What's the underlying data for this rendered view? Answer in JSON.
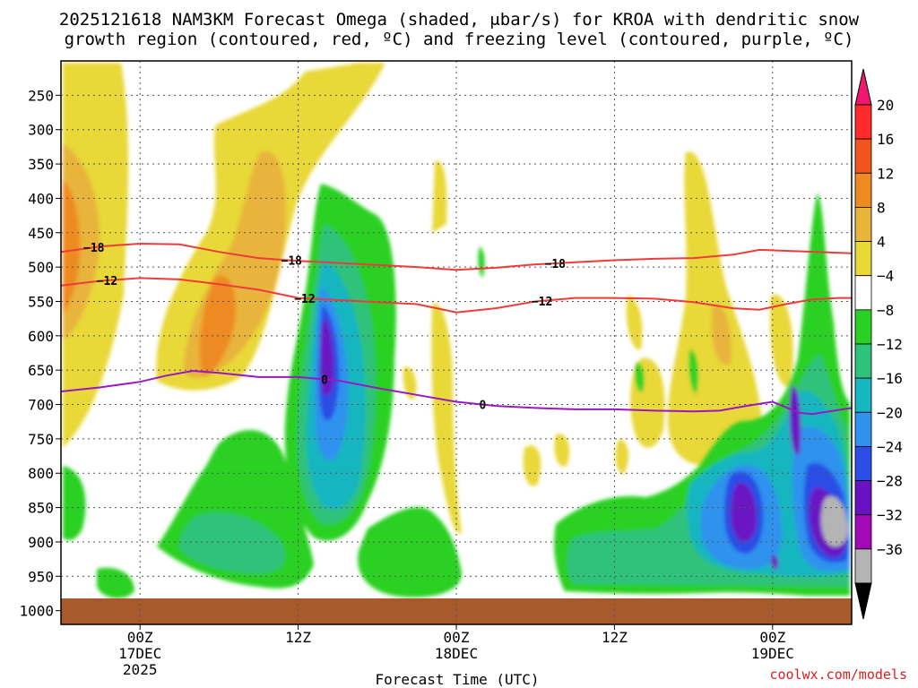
{
  "chart_data": {
    "type": "heatmap",
    "title_line1": "2025121618 NAM3KM Forecast Omega (shaded, μbar/s) for KROA with dendritic snow",
    "title_line2": "growth region (contoured, red, ºC) and freezing level (contoured, purple, ºC)",
    "xlabel": "Forecast Time (UTC)",
    "credit": "coolwx.com/models",
    "y_ticks": [
      250,
      300,
      350,
      400,
      450,
      500,
      550,
      600,
      650,
      700,
      750,
      800,
      850,
      900,
      950,
      1000
    ],
    "y_range_hpa": [
      200,
      1020
    ],
    "x_range_hours": [
      -6,
      54
    ],
    "x_ticks": [
      {
        "hour": 0,
        "label1": "00Z",
        "label2": "17DEC",
        "label3": "2025"
      },
      {
        "hour": 12,
        "label1": "12Z",
        "label2": "",
        "label3": ""
      },
      {
        "hour": 24,
        "label1": "00Z",
        "label2": "18DEC",
        "label3": ""
      },
      {
        "hour": 36,
        "label1": "12Z",
        "label2": "",
        "label3": ""
      },
      {
        "hour": 48,
        "label1": "00Z",
        "label2": "19DEC",
        "label3": ""
      }
    ],
    "colorbar_levels": [
      "20",
      "16",
      "12",
      "8",
      "4",
      "−4",
      "−8",
      "−12",
      "−16",
      "−20",
      "−24",
      "−28",
      "−32",
      "−36"
    ],
    "colorbar_colors": [
      "#ff2b2b",
      "#f2541f",
      "#ee8a22",
      "#e8b43a",
      "#e8d838",
      "#ffffff",
      "#2ad024",
      "#2ec27a",
      "#18b6c0",
      "#2e92ee",
      "#2a4ee6",
      "#6a12c2",
      "#a10ab6",
      "#b4b4b4"
    ],
    "colorbar_top_color": "#f0176e",
    "colorbar_bottom_color": "#000000",
    "contours": {
      "minus18": {
        "label": "−18",
        "color": "#ee3b3b",
        "points": [
          [
            -6,
            478
          ],
          [
            -3,
            470
          ],
          [
            0,
            466
          ],
          [
            3,
            467
          ],
          [
            6,
            478
          ],
          [
            9,
            487
          ],
          [
            12,
            491
          ],
          [
            15,
            494
          ],
          [
            18,
            497
          ],
          [
            21,
            500
          ],
          [
            24,
            504
          ],
          [
            27,
            501
          ],
          [
            30,
            496
          ],
          [
            33,
            493
          ],
          [
            36,
            490
          ],
          [
            39,
            488
          ],
          [
            42,
            487
          ],
          [
            45,
            482
          ],
          [
            47,
            475
          ],
          [
            50,
            477
          ],
          [
            54,
            480
          ]
        ]
      },
      "minus12": {
        "label": "−12",
        "color": "#ee3b3b",
        "points": [
          [
            -6,
            527
          ],
          [
            -3,
            520
          ],
          [
            0,
            516
          ],
          [
            3,
            518
          ],
          [
            6,
            525
          ],
          [
            9,
            533
          ],
          [
            12,
            545
          ],
          [
            15,
            548
          ],
          [
            18,
            551
          ],
          [
            21,
            554
          ],
          [
            24,
            566
          ],
          [
            27,
            560
          ],
          [
            30,
            550
          ],
          [
            33,
            545
          ],
          [
            36,
            545
          ],
          [
            39,
            546
          ],
          [
            42,
            551
          ],
          [
            45,
            560
          ],
          [
            47,
            562
          ],
          [
            49,
            554
          ],
          [
            51,
            547
          ],
          [
            53,
            545
          ],
          [
            54,
            545
          ]
        ]
      },
      "zero": {
        "label": "0",
        "color": "#9a18c4",
        "points": [
          [
            -6,
            681
          ],
          [
            -3,
            675
          ],
          [
            0,
            667
          ],
          [
            2,
            658
          ],
          [
            4,
            651
          ],
          [
            6,
            654
          ],
          [
            9,
            660
          ],
          [
            12,
            660
          ],
          [
            15,
            665
          ],
          [
            18,
            676
          ],
          [
            21,
            686
          ],
          [
            24,
            696
          ],
          [
            27,
            702
          ],
          [
            30,
            705
          ],
          [
            33,
            707
          ],
          [
            36,
            707
          ],
          [
            39,
            709
          ],
          [
            42,
            710
          ],
          [
            44,
            709
          ],
          [
            46,
            702
          ],
          [
            48,
            696
          ],
          [
            50,
            712
          ],
          [
            51,
            714
          ],
          [
            54,
            705
          ]
        ]
      }
    },
    "contour_label_positions": {
      "minus18": [
        [
          -3.5,
          0
        ],
        [
          11.5,
          1
        ],
        [
          31.5,
          2
        ]
      ],
      "minus12": [
        [
          -2.5,
          0
        ],
        [
          12.5,
          1
        ],
        [
          30.5,
          2
        ]
      ],
      "zero": [
        [
          14,
          0
        ],
        [
          26,
          1
        ]
      ]
    },
    "terrain_color": "#a85a2c"
  }
}
